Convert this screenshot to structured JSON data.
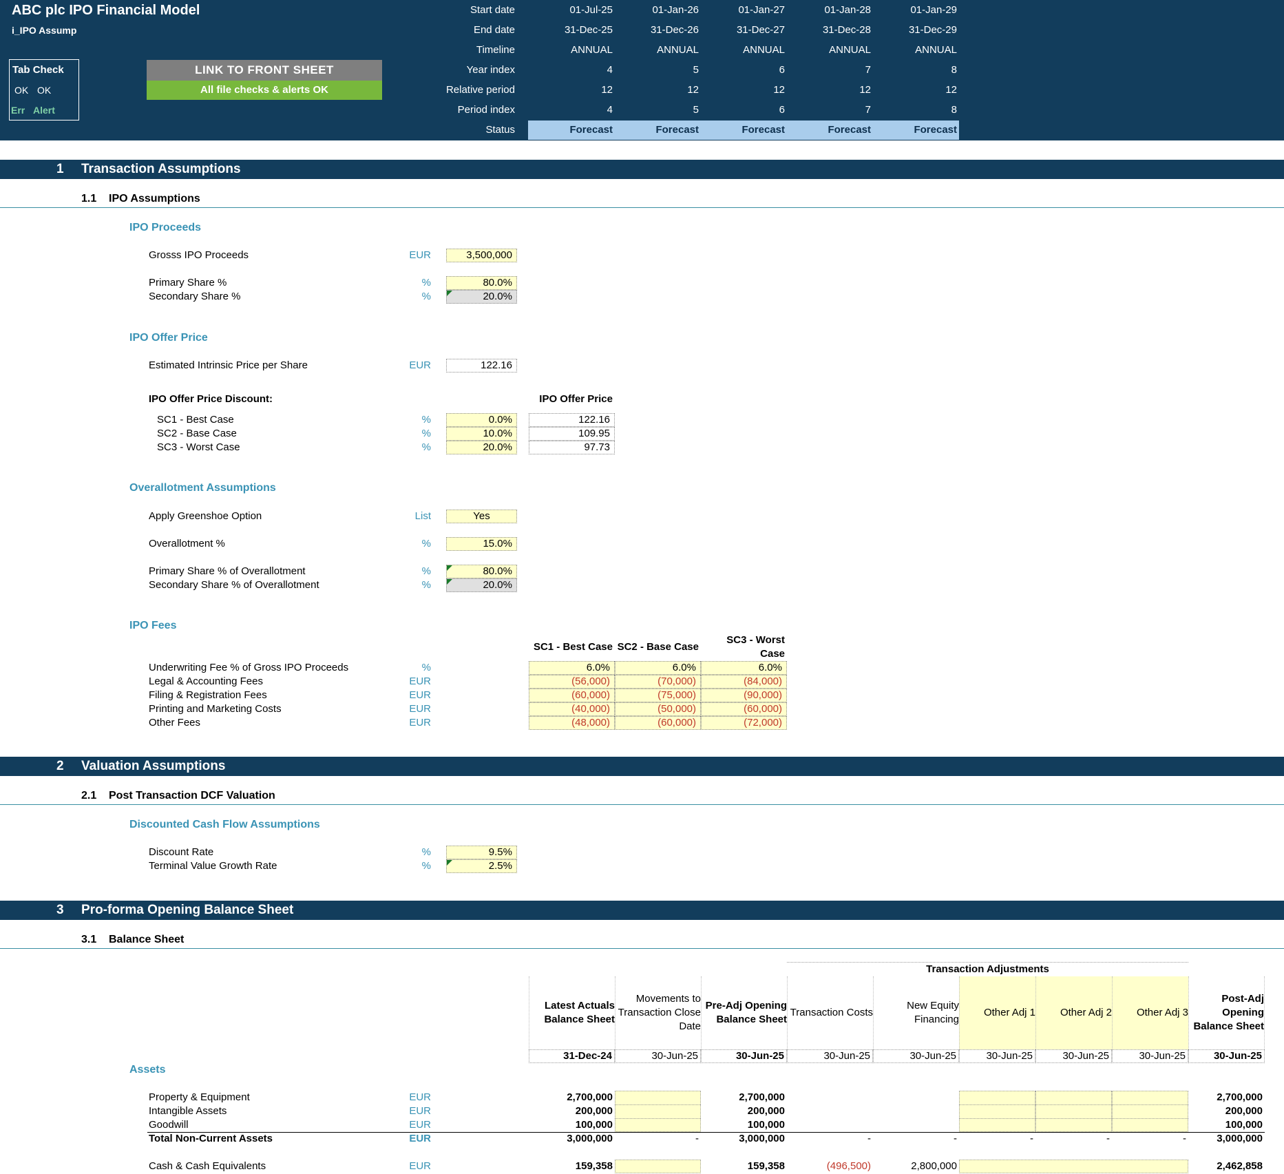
{
  "header": {
    "title": "ABC plc IPO Financial Model",
    "sheet": "i_IPO Assump",
    "tab_check": {
      "title": "Tab Check",
      "ok1": "OK",
      "ok2": "OK",
      "err": "Err",
      "alert": "Alert"
    },
    "link_button": "LINK TO FRONT SHEET",
    "checks_status": "All file checks & alerts OK",
    "timeline_labels": [
      "Start date",
      "End date",
      "Timeline",
      "Year index",
      "Relative period",
      "Period index",
      "Status"
    ],
    "start_dates": [
      "01-Jul-25",
      "01-Jan-26",
      "01-Jan-27",
      "01-Jan-28",
      "01-Jan-29"
    ],
    "end_dates": [
      "31-Dec-25",
      "31-Dec-26",
      "31-Dec-27",
      "31-Dec-28",
      "31-Dec-29"
    ],
    "timeline": [
      "ANNUAL",
      "ANNUAL",
      "ANNUAL",
      "ANNUAL",
      "ANNUAL"
    ],
    "year_index": [
      "4",
      "5",
      "6",
      "7",
      "8"
    ],
    "relative_period": [
      "12",
      "12",
      "12",
      "12",
      "12"
    ],
    "period_index": [
      "4",
      "5",
      "6",
      "7",
      "8"
    ],
    "status": [
      "Forecast",
      "Forecast",
      "Forecast",
      "Forecast",
      "Forecast"
    ]
  },
  "section1": {
    "num": "1",
    "title": "Transaction Assumptions",
    "sub_num": "1.1",
    "sub_title": "IPO Assumptions",
    "proceeds": {
      "heading": "IPO Proceeds",
      "gross_label": "Grosss IPO Proceeds",
      "gross_unit": "EUR",
      "gross_value": "3,500,000",
      "primary_label": "Primary Share %",
      "primary_unit": "%",
      "primary_value": "80.0%",
      "secondary_label": "Secondary Share %",
      "secondary_unit": "%",
      "secondary_value": "20.0%"
    },
    "offer": {
      "heading": "IPO Offer Price",
      "intrinsic_label": "Estimated Intrinsic Price per Share",
      "intrinsic_unit": "EUR",
      "intrinsic_value": "122.16",
      "discount_label": "IPO Offer Price Discount:",
      "offer_price_header": "IPO Offer Price",
      "scenarios": [
        {
          "label": "SC1 - Best Case",
          "unit": "%",
          "discount": "0.0%",
          "price": "122.16"
        },
        {
          "label": "SC2 - Base Case",
          "unit": "%",
          "discount": "10.0%",
          "price": "109.95"
        },
        {
          "label": "SC3 - Worst Case",
          "unit": "%",
          "discount": "20.0%",
          "price": "97.73"
        }
      ]
    },
    "overallot": {
      "heading": "Overallotment Assumptions",
      "greenshoe_label": "Apply Greenshoe Option",
      "greenshoe_unit": "List",
      "greenshoe_value": "Yes",
      "pct_label": "Overallotment %",
      "pct_unit": "%",
      "pct_value": "15.0%",
      "primary_label": "Primary Share % of Overallotment",
      "primary_unit": "%",
      "primary_value": "80.0%",
      "secondary_label": "Secondary Share % of Overallotment",
      "secondary_unit": "%",
      "secondary_value": "20.0%"
    },
    "fees": {
      "heading": "IPO Fees",
      "col1": "SC1 - Best Case",
      "col2": "SC2 - Base Case",
      "col3a": "SC3 - Worst",
      "col3b": "Case",
      "rows": [
        {
          "label": "Underwriting Fee % of Gross IPO Proceeds",
          "unit": "%",
          "v1": "6.0%",
          "v2": "6.0%",
          "v3": "6.0%"
        },
        {
          "label": "Legal & Accounting Fees",
          "unit": "EUR",
          "v1": "(56,000)",
          "v2": "(70,000)",
          "v3": "(84,000)"
        },
        {
          "label": "Filing & Registration Fees",
          "unit": "EUR",
          "v1": "(60,000)",
          "v2": "(75,000)",
          "v3": "(90,000)"
        },
        {
          "label": "Printing and Marketing Costs",
          "unit": "EUR",
          "v1": "(40,000)",
          "v2": "(50,000)",
          "v3": "(60,000)"
        },
        {
          "label": "Other Fees",
          "unit": "EUR",
          "v1": "(48,000)",
          "v2": "(60,000)",
          "v3": "(72,000)"
        }
      ]
    }
  },
  "section2": {
    "num": "2",
    "title": "Valuation Assumptions",
    "sub_num": "2.1",
    "sub_title": "Post Transaction DCF Valuation",
    "heading": "Discounted Cash Flow Assumptions",
    "discount_label": "Discount Rate",
    "discount_unit": "%",
    "discount_value": "9.5%",
    "tv_label": "Terminal Value Growth Rate",
    "tv_unit": "%",
    "tv_value": "2.5%"
  },
  "section3": {
    "num": "3",
    "title": "Pro-forma Opening Balance Sheet",
    "sub_num": "3.1",
    "sub_title": "Balance Sheet",
    "adj_header": "Transaction Adjustments",
    "columns": [
      {
        "l1": "Latest Actuals",
        "l2": "Balance Sheet",
        "l3": "",
        "date": "31-Dec-24"
      },
      {
        "l1": "Movements to",
        "l2": "Transaction Close",
        "l3": "Date",
        "date": "30-Jun-25"
      },
      {
        "l1": "Pre-Adj Opening",
        "l2": "Balance Sheet",
        "l3": "",
        "date": "30-Jun-25"
      },
      {
        "l1": "Transaction Costs",
        "l2": "",
        "l3": "",
        "date": "30-Jun-25"
      },
      {
        "l1": "New Equity",
        "l2": "Financing",
        "l3": "",
        "date": "30-Jun-25"
      },
      {
        "l1": "Other Adj 1",
        "l2": "",
        "l3": "",
        "date": "30-Jun-25"
      },
      {
        "l1": "Other Adj 2",
        "l2": "",
        "l3": "",
        "date": "30-Jun-25"
      },
      {
        "l1": "Other Adj 3",
        "l2": "",
        "l3": "",
        "date": "30-Jun-25"
      },
      {
        "l1": "Post-Adj",
        "l2": "Opening",
        "l3": "Balance Sheet",
        "date": "30-Jun-25"
      }
    ],
    "assets_heading": "Assets",
    "rows": [
      {
        "label": "Property & Equipment",
        "unit": "EUR",
        "c1": "2,700,000",
        "c3": "2,700,000",
        "c9": "2,700,000"
      },
      {
        "label": "Intangible Assets",
        "unit": "EUR",
        "c1": "200,000",
        "c3": "200,000",
        "c9": "200,000"
      },
      {
        "label": "Goodwill",
        "unit": "EUR",
        "c1": "100,000",
        "c3": "100,000",
        "c9": "100,000"
      }
    ],
    "total": {
      "label": "Total Non-Current Assets",
      "unit": "EUR",
      "c1": "3,000,000",
      "c2": "-",
      "c3": "3,000,000",
      "c4": "-",
      "c5": "-",
      "c6": "-",
      "c7": "-",
      "c8": "-",
      "c9": "3,000,000"
    },
    "cash": {
      "label": "Cash & Cash Equivalents",
      "unit": "EUR",
      "c1": "159,358",
      "c3": "159,358",
      "c4": "(496,500)",
      "c5": "2,800,000",
      "c9": "2,462,858"
    }
  }
}
